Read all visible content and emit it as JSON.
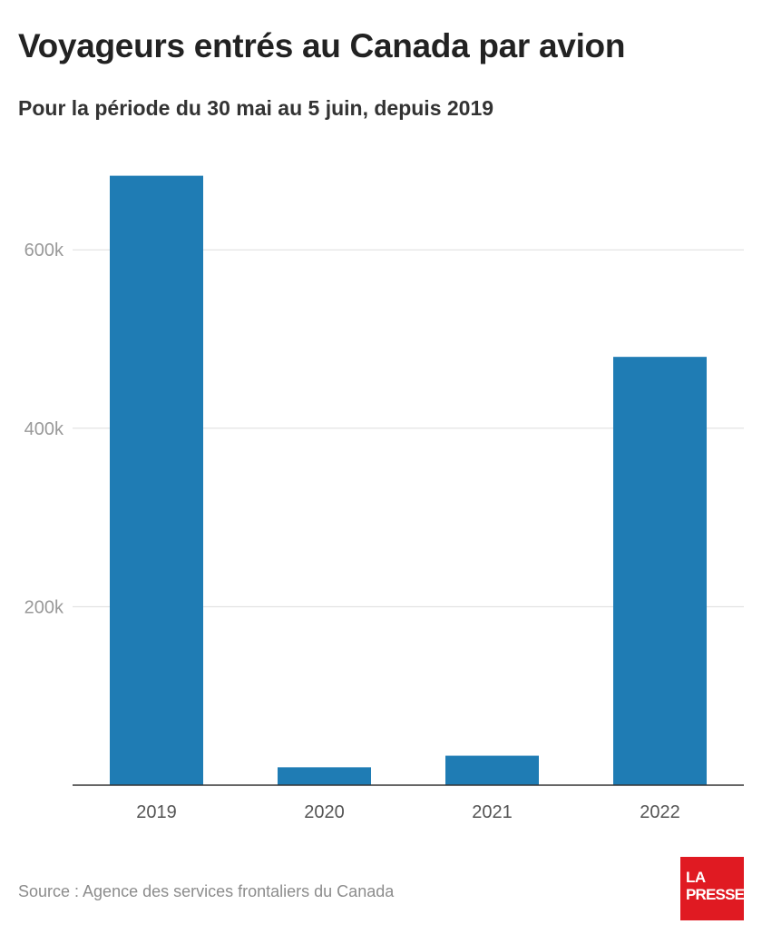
{
  "header": {
    "title": "Voyageurs entrés au Canada par avion",
    "subtitle": "Pour la période du 30 mai au 5 juin, depuis 2019"
  },
  "footer": {
    "source": "Source : Agence des services frontaliers du Canada",
    "logo_line1": "LA",
    "logo_line2": "PRESSE"
  },
  "colors": {
    "bar": "#1f7cb4",
    "gridline": "#dddddd",
    "axis": "#333333",
    "logo": "#e01a22"
  },
  "chart_data": {
    "type": "bar",
    "title": "Voyageurs entrés au Canada par avion",
    "subtitle": "Pour la période du 30 mai au 5 juin, depuis 2019",
    "categories": [
      "2019",
      "2020",
      "2021",
      "2022"
    ],
    "values": [
      683000,
      20000,
      33000,
      480000
    ],
    "ylim": [
      0,
      700000
    ],
    "yticks": [
      200000,
      400000,
      600000
    ],
    "ytick_labels": [
      "200k",
      "400k",
      "600k"
    ],
    "grid": true,
    "legend": "none",
    "xlabel": "",
    "ylabel": ""
  }
}
